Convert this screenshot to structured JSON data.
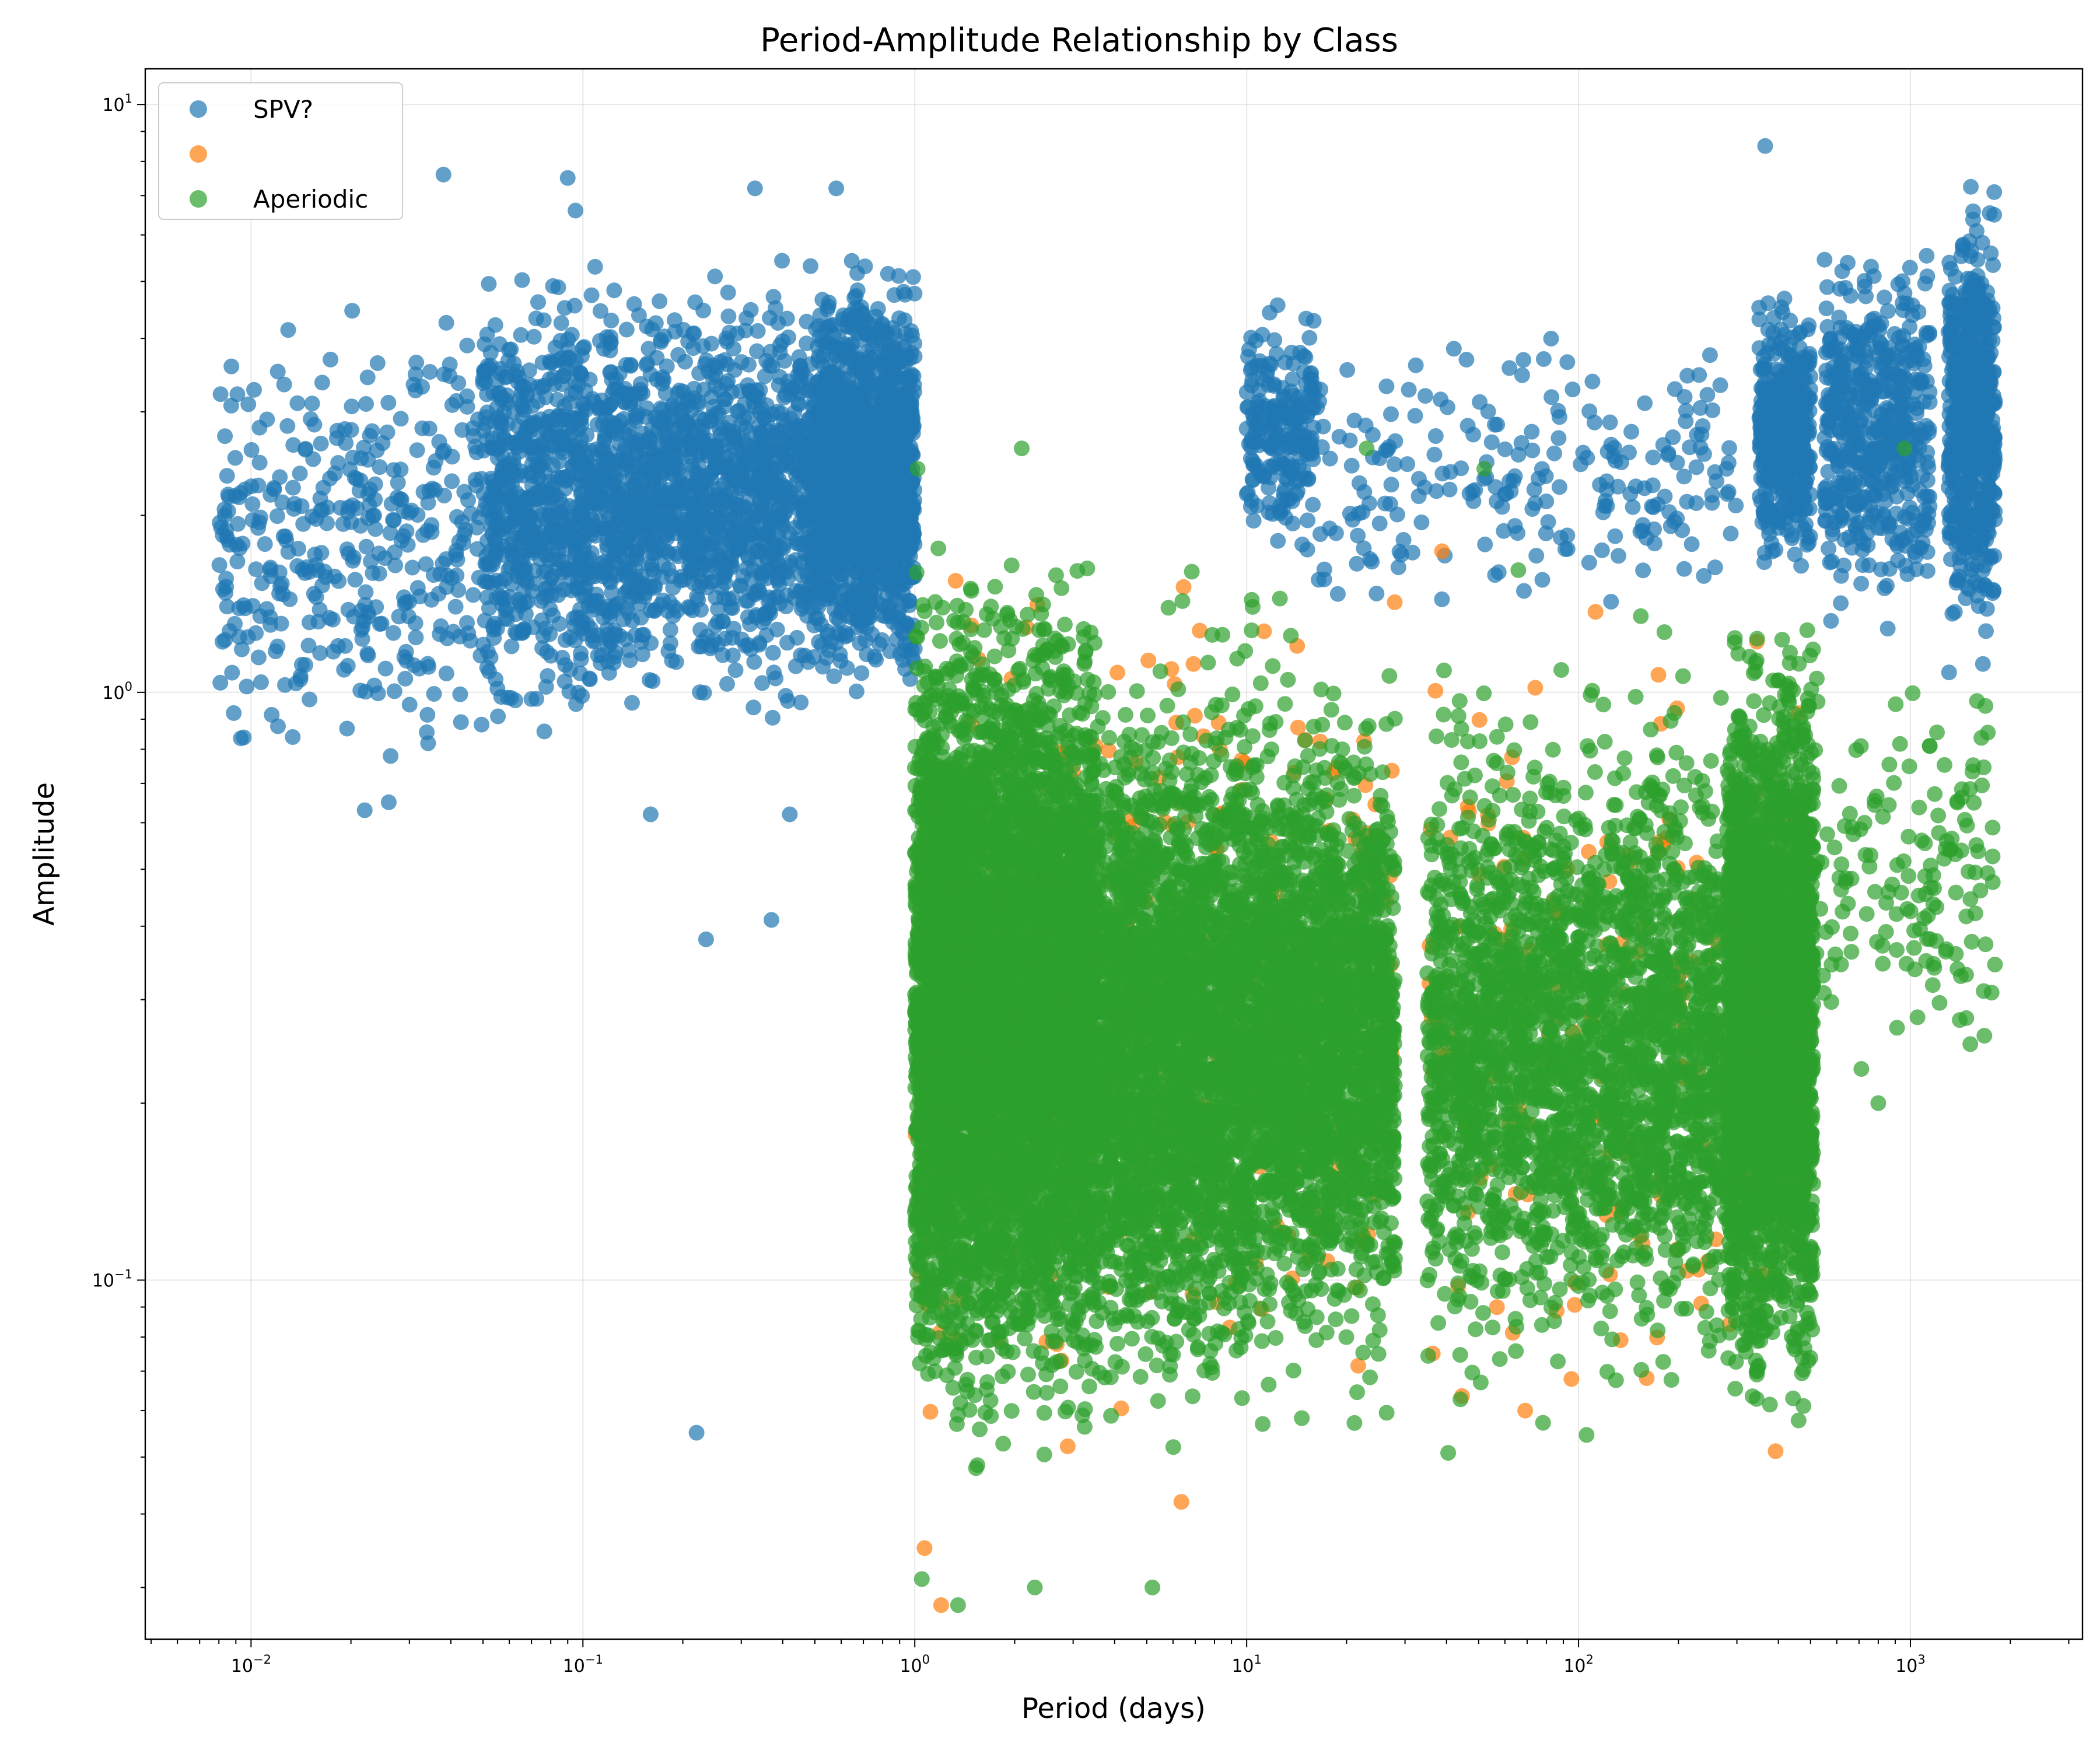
{
  "chart_data": {
    "type": "scatter",
    "title": "Period-Amplitude Relationship by Class",
    "xlabel": "Period (days)",
    "ylabel": "Amplitude",
    "xscale": "log",
    "yscale": "log",
    "xlim": [
      0.0048,
      3300
    ],
    "ylim": [
      0.0245,
      11.5
    ],
    "xticks": [
      {
        "value": 0.01,
        "base": "10",
        "exp": "−2"
      },
      {
        "value": 0.1,
        "base": "10",
        "exp": "−1"
      },
      {
        "value": 1,
        "base": "10",
        "exp": "0"
      },
      {
        "value": 10,
        "base": "10",
        "exp": "1"
      },
      {
        "value": 100,
        "base": "10",
        "exp": "2"
      },
      {
        "value": 1000,
        "base": "10",
        "exp": "3"
      }
    ],
    "yticks": [
      {
        "value": 0.1,
        "base": "10",
        "exp": "−1"
      },
      {
        "value": 1,
        "base": "10",
        "exp": "0"
      },
      {
        "value": 10,
        "base": "10",
        "exp": "1"
      }
    ],
    "grid": true,
    "legend": "upper-left",
    "series": [
      {
        "name": "SPV?",
        "color": "#1f77b4",
        "regions": [
          {
            "x": [
              0.008,
              0.05
            ],
            "y": [
              0.65,
              5.0
            ],
            "n": 380
          },
          {
            "x": [
              0.05,
              1.0
            ],
            "y": [
              0.8,
              5.8
            ],
            "n": 2600
          },
          {
            "x": [
              0.5,
              1.0
            ],
            "y": [
              1.0,
              6.0
            ],
            "n": 700
          },
          {
            "x": [
              10,
              16
            ],
            "y": [
              1.6,
              5.0
            ],
            "n": 220
          },
          {
            "x": [
              16,
              300
            ],
            "y": [
              1.2,
              4.5
            ],
            "n": 230
          },
          {
            "x": [
              350,
              500
            ],
            "y": [
              1.5,
              5.0
            ],
            "n": 420
          },
          {
            "x": [
              550,
              1150
            ],
            "y": [
              1.2,
              6.5
            ],
            "n": 520
          },
          {
            "x": [
              1300,
              1800
            ],
            "y": [
              1.0,
              8.0
            ],
            "n": 560
          }
        ],
        "points": [
          [
            0.038,
            7.6
          ],
          [
            0.09,
            7.5
          ],
          [
            0.33,
            7.2
          ],
          [
            0.58,
            7.2
          ],
          [
            0.095,
            6.6
          ],
          [
            0.22,
            0.055
          ],
          [
            0.235,
            0.38
          ],
          [
            0.37,
            0.41
          ],
          [
            365,
            8.5
          ],
          [
            0.022,
            0.63
          ],
          [
            0.026,
            0.65
          ],
          [
            0.16,
            0.62
          ],
          [
            0.42,
            0.62
          ]
        ]
      },
      {
        "name": "",
        "color": "#ff7f0e",
        "regions": [
          {
            "x": [
              1.0,
              28
            ],
            "y": [
              0.035,
              2.2
            ],
            "n": 330
          },
          {
            "x": [
              35,
              500
            ],
            "y": [
              0.035,
              1.9
            ],
            "n": 200
          }
        ],
        "points": [
          [
            1.2,
            0.028
          ],
          [
            1.07,
            0.035
          ]
        ]
      },
      {
        "name": "Aperiodic",
        "color": "#2ca02c",
        "regions": [
          {
            "x": [
              1.0,
              3.5
            ],
            "y": [
              0.045,
              1.9
            ],
            "n": 5200
          },
          {
            "x": [
              3.5,
              10
            ],
            "y": [
              0.05,
              1.2
            ],
            "n": 2200
          },
          {
            "x": [
              10,
              28
            ],
            "y": [
              0.06,
              1.1
            ],
            "n": 1900
          },
          {
            "x": [
              35,
              300
            ],
            "y": [
              0.06,
              1.0
            ],
            "n": 2100
          },
          {
            "x": [
              280,
              510
            ],
            "y": [
              0.05,
              1.5
            ],
            "n": 2500
          },
          {
            "x": [
              1.0,
              28
            ],
            "y": [
              0.035,
              2.3
            ],
            "n": 700
          },
          {
            "x": [
              35,
              510
            ],
            "y": [
              0.04,
              2.0
            ],
            "n": 600
          },
          {
            "x": [
              500,
              1800
            ],
            "y": [
              0.2,
              1.3
            ],
            "n": 160
          }
        ],
        "points": [
          [
            1.35,
            0.028
          ],
          [
            2.3,
            0.03
          ],
          [
            5.2,
            0.03
          ],
          [
            1.05,
            0.031
          ],
          [
            1.02,
            2.4
          ],
          [
            2.1,
            2.6
          ],
          [
            23,
            2.6
          ],
          [
            52,
            2.4
          ],
          [
            960,
            2.6
          ],
          [
            1050,
            0.28
          ],
          [
            800,
            0.2
          ]
        ]
      }
    ]
  }
}
